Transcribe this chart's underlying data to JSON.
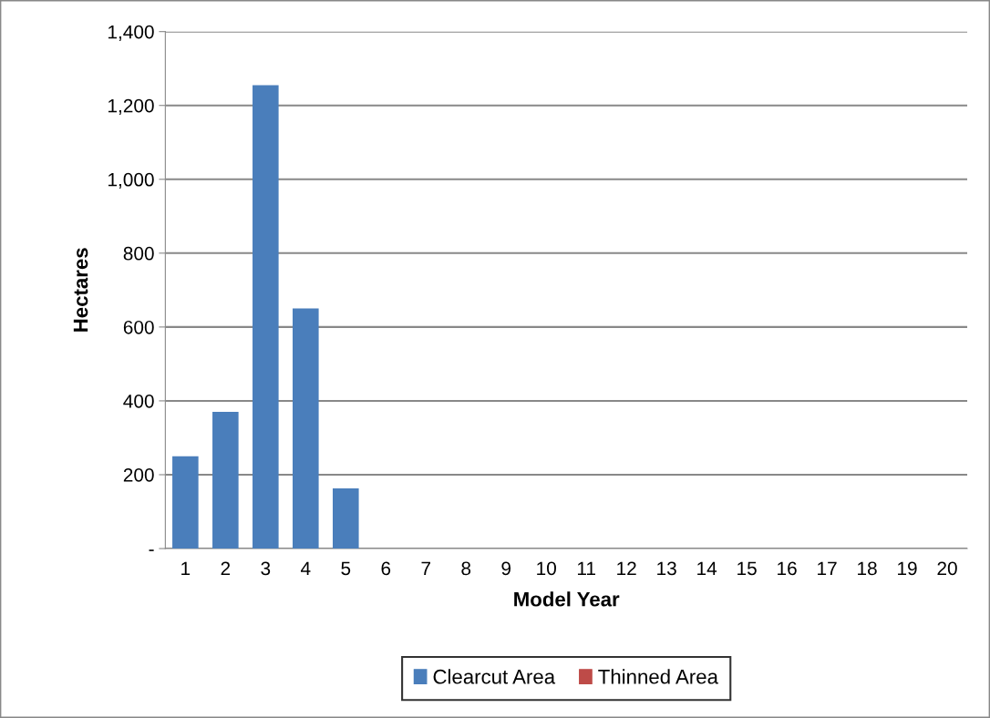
{
  "chart_data": {
    "type": "bar",
    "xlabel": "Model Year",
    "ylabel": "Hectares",
    "categories": [
      "1",
      "2",
      "3",
      "4",
      "5",
      "6",
      "7",
      "8",
      "9",
      "10",
      "11",
      "12",
      "13",
      "14",
      "15",
      "16",
      "17",
      "18",
      "19",
      "20"
    ],
    "series": [
      {
        "name": "Clearcut Area",
        "color": "#4a7ebb",
        "values": [
          250,
          370,
          1255,
          650,
          163,
          0,
          0,
          0,
          0,
          0,
          0,
          0,
          0,
          0,
          0,
          0,
          0,
          0,
          0,
          0
        ]
      },
      {
        "name": "Thinned Area",
        "color": "#be4b48",
        "values": [
          0,
          0,
          0,
          0,
          0,
          0,
          0,
          0,
          0,
          0,
          0,
          0,
          0,
          0,
          0,
          0,
          0,
          0,
          0,
          0
        ]
      }
    ],
    "ylim": [
      0,
      1400
    ],
    "yticks": [
      {
        "value": 0,
        "label": "-"
      },
      {
        "value": 200,
        "label": "200"
      },
      {
        "value": 400,
        "label": "400"
      },
      {
        "value": 600,
        "label": "600"
      },
      {
        "value": 800,
        "label": "800"
      },
      {
        "value": 1000,
        "label": "1,000"
      },
      {
        "value": 1200,
        "label": "1,200"
      },
      {
        "value": 1400,
        "label": "1,400"
      }
    ],
    "grid": "y",
    "legend": "bottom"
  }
}
